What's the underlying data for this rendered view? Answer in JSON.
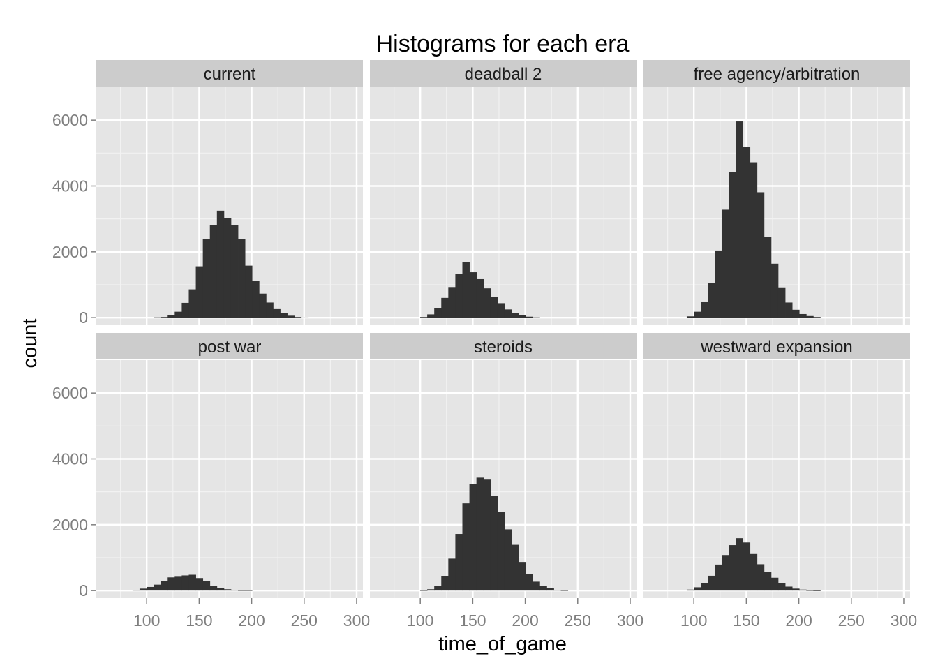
{
  "chart_data": {
    "type": "bar",
    "title": "Histograms for each era",
    "xlabel": "time_of_game",
    "ylabel": "count",
    "xlim": [
      52,
      306
    ],
    "ylim": [
      -230,
      7000
    ],
    "x_ticks": [
      "100",
      "150",
      "200",
      "250",
      "300"
    ],
    "x_tick_values": [
      100,
      150,
      200,
      250,
      300
    ],
    "y_ticks": [
      "0",
      "2000",
      "4000",
      "6000"
    ],
    "y_tick_values": [
      0,
      2000,
      4000,
      6000
    ],
    "grid": true,
    "layout": "facets 2 rows x 3 columns",
    "bin_width": 6.7,
    "bin_starts": [
      86.5,
      93.2,
      99.9,
      106.6,
      113.3,
      120.0,
      126.7,
      133.4,
      140.1,
      146.8,
      153.5,
      160.2,
      166.9,
      173.6,
      180.3,
      187.0,
      193.7,
      200.4,
      207.1,
      213.8,
      220.5,
      227.2,
      233.9,
      240.6,
      247.3,
      254.0,
      260.7
    ],
    "panels": [
      {
        "name": "current",
        "values": [
          0,
          0,
          0,
          10,
          20,
          80,
          180,
          450,
          860,
          1560,
          2380,
          2820,
          3250,
          3030,
          2820,
          2380,
          1580,
          1120,
          730,
          460,
          260,
          150,
          60,
          20,
          5,
          0,
          0
        ]
      },
      {
        "name": "deadball 2",
        "values": [
          0,
          0,
          20,
          100,
          300,
          600,
          930,
          1320,
          1680,
          1380,
          1170,
          890,
          620,
          440,
          250,
          140,
          70,
          30,
          10,
          0,
          0,
          0,
          0,
          0,
          0,
          0,
          0
        ]
      },
      {
        "name": "free agency/arbitration",
        "values": [
          0,
          40,
          180,
          470,
          1050,
          2040,
          3280,
          4420,
          5960,
          5180,
          4720,
          3810,
          2460,
          1640,
          920,
          460,
          240,
          110,
          50,
          20,
          0,
          0,
          0,
          0,
          0,
          0,
          0
        ]
      },
      {
        "name": "post war",
        "values": [
          20,
          60,
          110,
          180,
          280,
          400,
          420,
          460,
          480,
          380,
          280,
          140,
          80,
          40,
          20,
          10,
          10,
          0,
          0,
          0,
          0,
          0,
          0,
          0,
          0,
          0,
          0
        ]
      },
      {
        "name": "steroids",
        "values": [
          0,
          0,
          10,
          40,
          140,
          440,
          970,
          1720,
          2650,
          3230,
          3430,
          3370,
          2880,
          2380,
          1860,
          1390,
          870,
          500,
          270,
          150,
          70,
          20,
          10,
          0,
          0,
          0,
          0
        ]
      },
      {
        "name": "westward expansion",
        "values": [
          0,
          30,
          100,
          230,
          450,
          790,
          1080,
          1380,
          1590,
          1460,
          1110,
          800,
          570,
          390,
          220,
          120,
          60,
          30,
          10,
          5,
          0,
          0,
          0,
          0,
          0,
          0,
          0
        ]
      }
    ],
    "colors": {
      "bar": "#333333",
      "panel_background": "#e5e5e5",
      "strip_background": "#cccccc",
      "grid_major": "#ffffff",
      "grid_minor": "#f2f2f2",
      "tick_label": "#7f7f7f"
    }
  }
}
